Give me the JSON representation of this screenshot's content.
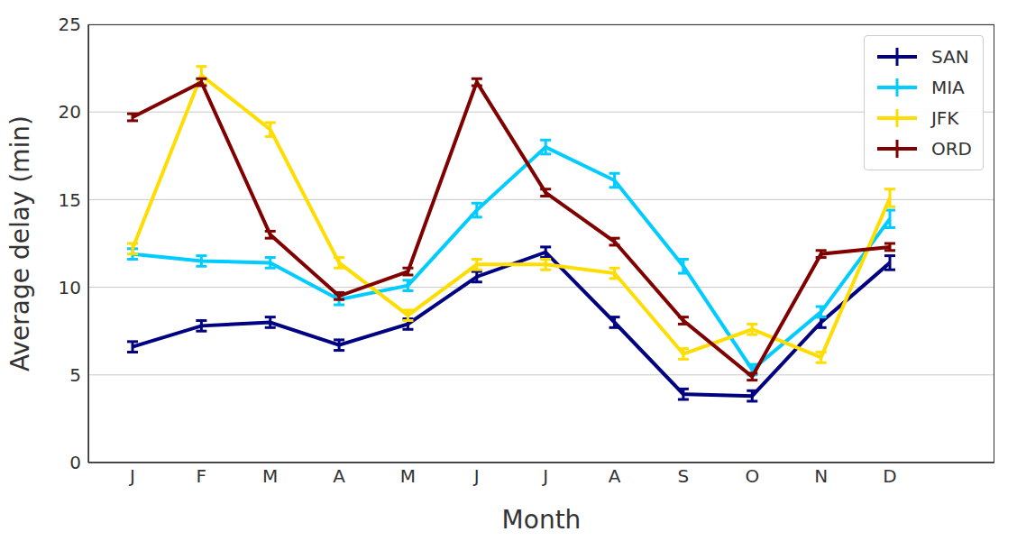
{
  "chart_data": {
    "type": "line",
    "x_label": "Month",
    "y_label": "Average delay (min)",
    "categories": [
      "J",
      "F",
      "M",
      "A",
      "M",
      "J",
      "J",
      "A",
      "S",
      "O",
      "N",
      "D"
    ],
    "series": [
      {
        "name": "SAN",
        "color": "#000080",
        "values": [
          6.6,
          7.8,
          8.0,
          6.7,
          7.9,
          10.6,
          12.0,
          8.0,
          3.9,
          3.8,
          8.0,
          11.4
        ],
        "errors": [
          0.3,
          0.3,
          0.3,
          0.3,
          0.3,
          0.3,
          0.3,
          0.3,
          0.3,
          0.3,
          0.3,
          0.4
        ]
      },
      {
        "name": "MIA",
        "color": "#00ccff",
        "values": [
          11.9,
          11.5,
          11.4,
          9.3,
          10.1,
          14.4,
          18.0,
          16.1,
          11.2,
          5.3,
          8.6,
          13.9
        ],
        "errors": [
          0.3,
          0.3,
          0.3,
          0.3,
          0.3,
          0.4,
          0.4,
          0.4,
          0.4,
          0.3,
          0.3,
          0.5
        ]
      },
      {
        "name": "JFK",
        "color": "#ffdd00",
        "values": [
          12.2,
          22.1,
          19.0,
          11.4,
          8.4,
          11.3,
          11.3,
          10.8,
          6.2,
          7.6,
          6.0,
          15.1
        ],
        "errors": [
          0.3,
          0.5,
          0.4,
          0.3,
          0.3,
          0.3,
          0.3,
          0.3,
          0.3,
          0.3,
          0.3,
          0.5
        ]
      },
      {
        "name": "ORD",
        "color": "#800000",
        "values": [
          19.7,
          21.7,
          13.0,
          9.5,
          10.9,
          21.7,
          15.4,
          12.6,
          8.1,
          4.9,
          11.9,
          12.3
        ],
        "errors": [
          0.2,
          0.2,
          0.2,
          0.2,
          0.2,
          0.2,
          0.2,
          0.2,
          0.2,
          0.2,
          0.2,
          0.2
        ]
      }
    ],
    "ylim": [
      0,
      25
    ],
    "yticks": [
      0,
      5,
      10,
      15,
      20,
      25
    ],
    "grid": true,
    "legend": "upper right"
  }
}
